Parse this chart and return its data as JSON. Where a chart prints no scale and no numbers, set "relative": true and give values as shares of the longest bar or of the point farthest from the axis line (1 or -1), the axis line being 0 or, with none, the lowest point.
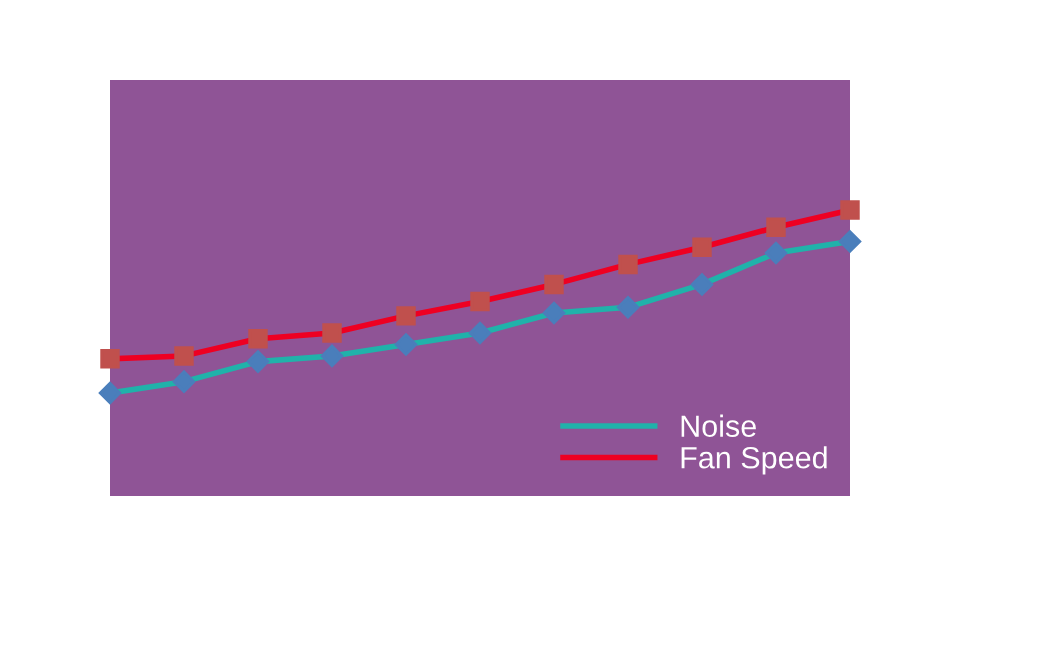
{
  "chart_data": {
    "type": "line",
    "relative": true,
    "categories": [
      null,
      null,
      null,
      null,
      null,
      null,
      null,
      null,
      null,
      null,
      null
    ],
    "series": [
      {
        "name": "Noise",
        "color": "#20b2aa",
        "marker": "diamond",
        "values": [
          0.36,
          0.4,
          0.47,
          0.49,
          0.53,
          0.57,
          0.64,
          0.66,
          0.74,
          0.85,
          0.89
        ]
      },
      {
        "name": "Fan Speed",
        "color": "#ee0022",
        "marker": "square",
        "values": [
          0.48,
          0.49,
          0.55,
          0.57,
          0.63,
          0.68,
          0.74,
          0.81,
          0.87,
          0.94,
          1
        ]
      }
    ],
    "legend": "bottom right",
    "grid": false
  }
}
